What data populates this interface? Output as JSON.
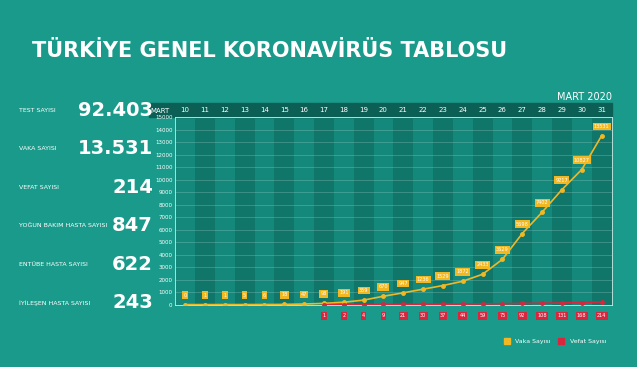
{
  "title": "TÜRKİYE GENEL KORONAVİRÜS TABLOSU",
  "stats": [
    {
      "label": "TEST SAYISI",
      "value": "92.403"
    },
    {
      "label": "VAKA SAYISI",
      "value": "13.531"
    },
    {
      "label": "VEFAT SAYISI",
      "value": "214"
    },
    {
      "label": "YOĞUN BAKIM HASTA SAYISI",
      "value": "847"
    },
    {
      "label": "ENTÜBE HASTA SAYISI",
      "value": "622"
    },
    {
      "label": "İYİLEŞEN HASTA SAYISI",
      "value": "243"
    }
  ],
  "chart_data": {
    "type": "line",
    "subtitle": "MART 2020",
    "x_label": "MART",
    "categories": [
      "10",
      "11",
      "12",
      "13",
      "14",
      "15",
      "16",
      "17",
      "18",
      "19",
      "20",
      "21",
      "22",
      "23",
      "24",
      "25",
      "26",
      "27",
      "28",
      "29",
      "30",
      "31"
    ],
    "series": [
      {
        "name": "Vaka Sayısı",
        "color": "#f2b824",
        "marker": "circle",
        "values": [
          0,
          1,
          1,
          5,
          6,
          18,
          47,
          98,
          191,
          359,
          670,
          947,
          1236,
          1529,
          1872,
          2433,
          3629,
          5698,
          7402,
          9217,
          10827,
          13531
        ]
      },
      {
        "name": "Vefat Sayısı",
        "color": "#d7263d",
        "marker": "circle",
        "values": [
          null,
          null,
          null,
          null,
          null,
          null,
          null,
          1,
          2,
          4,
          9,
          21,
          30,
          37,
          44,
          59,
          75,
          92,
          108,
          131,
          168,
          214
        ]
      }
    ],
    "ylim": [
      0,
      15000
    ],
    "yticks": [
      0,
      1000,
      2000,
      3000,
      4000,
      5000,
      6000,
      7000,
      8000,
      9000,
      10000,
      11000,
      12000,
      13000,
      14000,
      15000
    ],
    "data_labels": true,
    "grid": true,
    "legend": "lower right"
  }
}
